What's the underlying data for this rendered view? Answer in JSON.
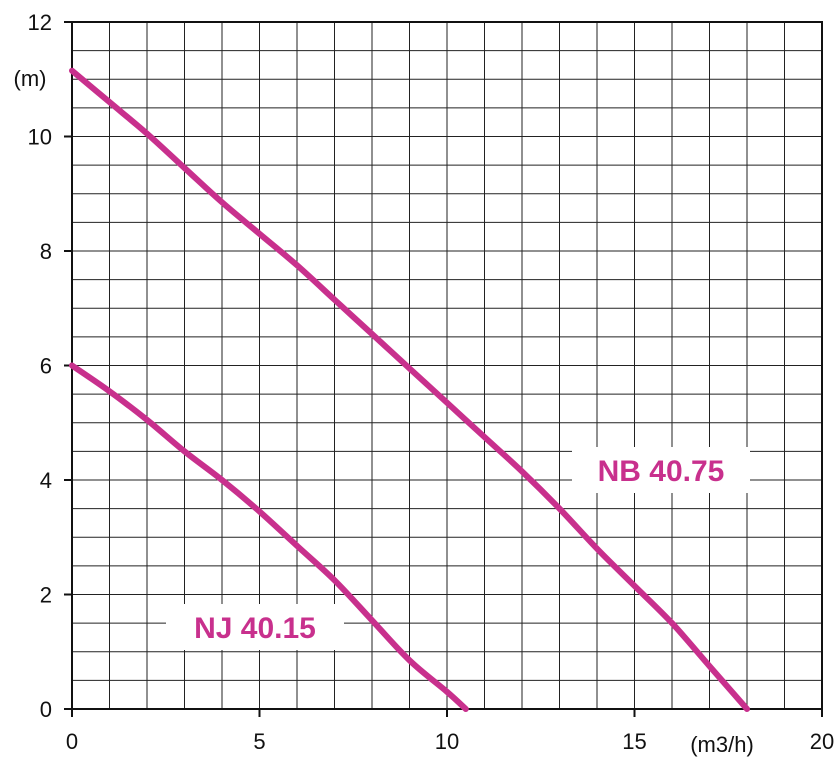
{
  "chart_data": {
    "type": "line",
    "title": "",
    "xlabel": "(m3/h)",
    "ylabel": "(m)",
    "xlim": [
      0,
      20
    ],
    "ylim": [
      0,
      12
    ],
    "x_ticks": [
      "0",
      "5",
      "10",
      "15",
      "20"
    ],
    "y_ticks": [
      "0",
      "2",
      "4",
      "6",
      "8",
      "10",
      "12"
    ],
    "grid": true,
    "series": [
      {
        "name": "NB 40.75",
        "x": [
          0,
          1,
          2,
          3,
          4,
          5,
          6,
          7,
          8,
          9,
          10,
          11,
          12,
          13,
          14,
          15,
          16,
          17,
          18
        ],
        "y": [
          11.15,
          10.6,
          10.05,
          9.45,
          8.85,
          8.3,
          7.75,
          7.15,
          6.55,
          5.95,
          5.35,
          4.75,
          4.15,
          3.5,
          2.8,
          2.15,
          1.5,
          0.75,
          0
        ]
      },
      {
        "name": "NJ 40.15",
        "x": [
          0,
          1,
          2,
          3,
          4,
          5,
          6,
          7,
          8,
          9,
          10,
          10.5
        ],
        "y": [
          6.0,
          5.55,
          5.05,
          4.5,
          4.0,
          3.45,
          2.85,
          2.25,
          1.55,
          0.85,
          0.3,
          0
        ]
      }
    ],
    "line_color": "#c8308d"
  }
}
